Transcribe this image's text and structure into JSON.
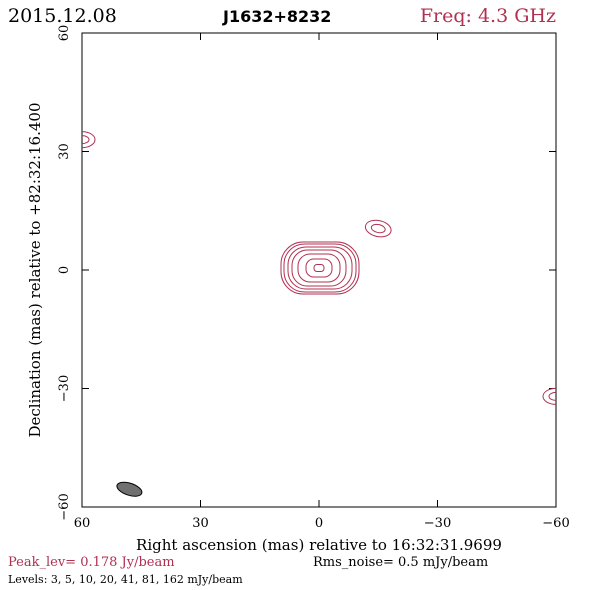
{
  "header": {
    "date": "2015.12.08",
    "source": "J1632+8232",
    "freq": "Freq: 4.3 GHz"
  },
  "colors": {
    "contour": "#b03050",
    "axis": "#000000",
    "beam_fill": "#707070"
  },
  "footer": {
    "peak": "Peak_lev=  0.178 Jy/beam",
    "rms": "Rms_noise=  0.5 mJy/beam",
    "levels": "Levels:  3,  5,  10,  20,  41,  81, 162 mJy/beam"
  },
  "chart_data": {
    "type": "contour",
    "title": "",
    "xlabel": "Right ascension (mas) relative to 16:32:31.9699",
    "ylabel": "Declination (mas) relative to +82:32:16.400",
    "xlim": [
      60,
      -60
    ],
    "ylim": [
      -60,
      60
    ],
    "xticks": [
      60,
      30,
      0,
      -30,
      -60
    ],
    "yticks": [
      -60,
      -30,
      0,
      30,
      60
    ],
    "xtick_labels": [
      "60",
      "30",
      "0",
      "−30",
      "−60"
    ],
    "ytick_labels": [
      "−60",
      "−30",
      "0",
      "30",
      "60"
    ],
    "levels_mJy": [
      3,
      5,
      10,
      20,
      41,
      81,
      162
    ],
    "peak_Jy_per_beam": 0.178,
    "rms_mJy_per_beam": 0.5,
    "components": [
      {
        "x": 0,
        "y": 0.5,
        "levels": 7
      },
      {
        "x": -15,
        "y": 10.5,
        "levels": 2
      },
      {
        "x": 60,
        "y": 33,
        "levels": 2
      },
      {
        "x": -60,
        "y": -32,
        "levels": 2
      }
    ],
    "beam": {
      "x": 48,
      "y": -55.5
    }
  }
}
